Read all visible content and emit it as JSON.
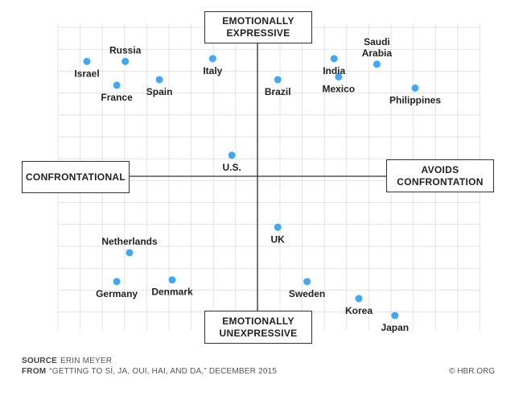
{
  "chart_data": {
    "type": "scatter",
    "x_axis": {
      "left_label": "CONFRONTATIONAL",
      "right_label": [
        "AVOIDS",
        "CONFRONTATION"
      ],
      "range": [
        -10,
        10
      ]
    },
    "y_axis": {
      "top_label": [
        "EMOTIONALLY",
        "EXPRESSIVE"
      ],
      "bottom_label": [
        "EMOTIONALLY",
        "UNEXPRESSIVE"
      ],
      "range": [
        -10,
        10
      ]
    },
    "grid": true,
    "point_color": "#3fa9f5",
    "points": [
      {
        "label": "Israel",
        "x": -8,
        "y": 8.2,
        "anchor": "below"
      },
      {
        "label": "Russia",
        "x": -6.2,
        "y": 8.2,
        "anchor": "above"
      },
      {
        "label": "France",
        "x": -6.6,
        "y": 6.5,
        "anchor": "below"
      },
      {
        "label": "Spain",
        "x": -4.6,
        "y": 6.9,
        "anchor": "below"
      },
      {
        "label": "Italy",
        "x": -2.1,
        "y": 8.4,
        "anchor": "below"
      },
      {
        "label": "Brazil",
        "x": 0.9,
        "y": 6.9,
        "anchor": "below"
      },
      {
        "label": "India",
        "x": 3.4,
        "y": 8.4,
        "anchor": "below"
      },
      {
        "label": [
          "Saudi",
          "Arabia"
        ],
        "x": 5.3,
        "y": 8,
        "anchor": "above"
      },
      {
        "label": "Mexico",
        "x": 3.6,
        "y": 7.1,
        "anchor": "below"
      },
      {
        "label": "Philippines",
        "x": 7,
        "y": 6.3,
        "anchor": "below"
      },
      {
        "label": "U.S.",
        "x": -1.2,
        "y": 1.5,
        "anchor": "below"
      },
      {
        "label": "UK",
        "x": 0.9,
        "y": -3,
        "anchor": "below"
      },
      {
        "label": "Netherlands",
        "x": -6,
        "y": -4.5,
        "anchor": "above"
      },
      {
        "label": "Germany",
        "x": -6.6,
        "y": -6.2,
        "anchor": "below"
      },
      {
        "label": "Denmark",
        "x": -4,
        "y": -6.1,
        "anchor": "below"
      },
      {
        "label": "Sweden",
        "x": 2.2,
        "y": -6.2,
        "anchor": "below"
      },
      {
        "label": "Korea",
        "x": 4.5,
        "y": -7.2,
        "anchor": "below"
      },
      {
        "label": "Japan",
        "x": 6.1,
        "y": -8.2,
        "anchor": "below"
      }
    ]
  },
  "footer": {
    "source_key": "SOURCE",
    "source_value": "ERIN MEYER",
    "from_key": "FROM",
    "from_value": "“GETTING TO SÍ, JA, OUI, HAI, AND DA,” DECEMBER 2015",
    "credit": "© HBR.ORG"
  }
}
